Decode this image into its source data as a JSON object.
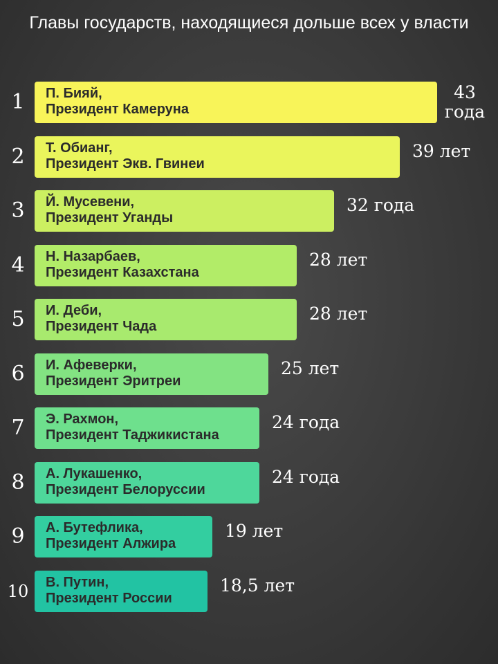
{
  "chart_data": {
    "type": "bar",
    "orientation": "horizontal",
    "title": "Главы государств, находящиеся дольше всех у власти",
    "xlim": [
      0,
      43
    ],
    "grid": false,
    "ranks": [
      "1",
      "2",
      "3",
      "4",
      "5",
      "6",
      "7",
      "8",
      "9",
      "10"
    ],
    "categories": [
      "П. Бияй,\nПрезидент Камеруна",
      "Т. Обианг,\nПрезидент Экв. Гвинеи",
      "Й. Мусевени,\nПрезидент Уганды",
      "Н. Назарбаев,\nПрезидент Казахстана",
      "И. Деби,\nПрезидент Чада",
      "И. Афеверки,\nПрезидент Эритреи",
      "Э. Рахмон,\nПрезидент Таджикистана",
      "А. Лукашенко,\nПрезидент Белоруссии",
      "А. Бутефлика,\nПрезидент Алжира",
      "В. Путин,\nПрезидент России"
    ],
    "values": [
      43,
      39,
      32,
      28,
      28,
      25,
      24,
      24,
      19,
      18.5
    ],
    "value_labels": [
      "43 года",
      "39 лет",
      "32 года",
      "28 лет",
      "28 лет",
      "25 лет",
      "24 года",
      "24 года",
      "19 лет",
      "18,5 лет"
    ],
    "colors": [
      "#f8f459",
      "#eaf55c",
      "#ccef61",
      "#b2ec68",
      "#a8ea6e",
      "#83e382",
      "#6ee08d",
      "#4ed79b",
      "#33cea0",
      "#22c3a3"
    ]
  }
}
